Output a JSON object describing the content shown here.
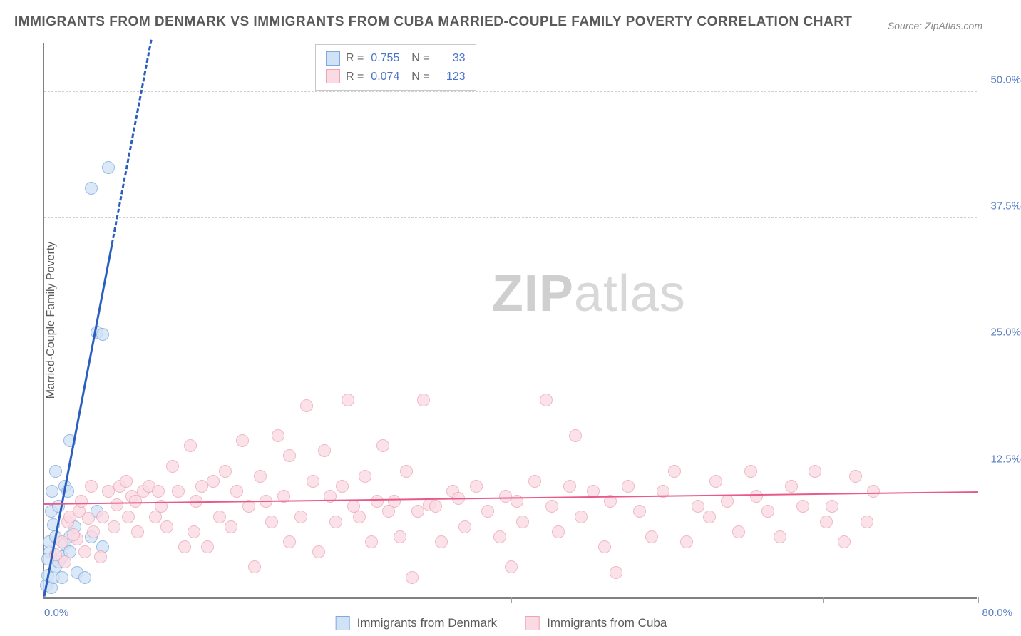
{
  "title": "IMMIGRANTS FROM DENMARK VS IMMIGRANTS FROM CUBA MARRIED-COUPLE FAMILY POVERTY CORRELATION CHART",
  "source": "Source: ZipAtlas.com",
  "y_axis_label": "Married-Couple Family Poverty",
  "watermark_bold": "ZIP",
  "watermark_light": "atlas",
  "chart": {
    "type": "scatter",
    "xlim": [
      0,
      80
    ],
    "ylim": [
      0,
      55
    ],
    "x_min_label": "0.0%",
    "x_max_label": "80.0%",
    "y_ticks": [
      {
        "v": 12.5,
        "label": "12.5%"
      },
      {
        "v": 25.0,
        "label": "25.0%"
      },
      {
        "v": 37.5,
        "label": "37.5%"
      },
      {
        "v": 50.0,
        "label": "50.0%"
      }
    ],
    "x_tick_positions": [
      13.33,
      26.66,
      40,
      53.33,
      66.66,
      80
    ],
    "background_color": "#ffffff",
    "grid_color": "#d0d0d0",
    "marker_radius": 9,
    "series": [
      {
        "name": "Immigrants from Denmark",
        "fill": "#d0e2f6",
        "stroke": "#7ea9df",
        "trend": {
          "color": "#2a5fbf",
          "slope": 6.0,
          "intercept": 0,
          "width": 3,
          "dash_after_x": 5.8
        },
        "R": "0.755",
        "N": "33",
        "points": [
          [
            0.2,
            1.2
          ],
          [
            0.6,
            1.0
          ],
          [
            0.3,
            2.2
          ],
          [
            0.8,
            2.0
          ],
          [
            1.0,
            3.0
          ],
          [
            1.2,
            3.5
          ],
          [
            0.5,
            4.5
          ],
          [
            1.5,
            4.0
          ],
          [
            0.4,
            5.5
          ],
          [
            1.0,
            6.0
          ],
          [
            1.8,
            5.3
          ],
          [
            2.2,
            4.5
          ],
          [
            2.8,
            2.5
          ],
          [
            3.5,
            2.0
          ],
          [
            0.6,
            8.5
          ],
          [
            1.2,
            9.0
          ],
          [
            1.8,
            11.0
          ],
          [
            2.0,
            10.5
          ],
          [
            1.0,
            12.5
          ],
          [
            2.2,
            15.5
          ],
          [
            2.6,
            7.0
          ],
          [
            4.0,
            6.0
          ],
          [
            4.5,
            8.5
          ],
          [
            5.0,
            5.0
          ],
          [
            0.3,
            3.8
          ],
          [
            0.8,
            7.2
          ],
          [
            4.5,
            26.2
          ],
          [
            5.0,
            26.0
          ],
          [
            4.0,
            40.5
          ],
          [
            5.5,
            42.5
          ],
          [
            2.2,
            6.0
          ],
          [
            1.5,
            2.0
          ],
          [
            0.7,
            10.5
          ]
        ]
      },
      {
        "name": "Immigrants from Cuba",
        "fill": "#fadbe3",
        "stroke": "#eda4b7",
        "trend": {
          "color": "#e85a8a",
          "slope": 0.015,
          "intercept": 9.2,
          "width": 2.5,
          "dash_after_x": 999
        },
        "R": "0.074",
        "N": "123",
        "points": [
          [
            1.0,
            4.2
          ],
          [
            1.5,
            5.5
          ],
          [
            2.0,
            7.5
          ],
          [
            2.2,
            8.0
          ],
          [
            2.8,
            5.8
          ],
          [
            3.0,
            8.5
          ],
          [
            3.5,
            4.5
          ],
          [
            3.2,
            9.5
          ],
          [
            4.0,
            11.0
          ],
          [
            4.2,
            6.5
          ],
          [
            5.0,
            8.0
          ],
          [
            5.5,
            10.5
          ],
          [
            6.0,
            7.0
          ],
          [
            6.5,
            11.0
          ],
          [
            7.0,
            11.5
          ],
          [
            7.5,
            10.0
          ],
          [
            7.2,
            8.0
          ],
          [
            7.8,
            9.5
          ],
          [
            8.5,
            10.5
          ],
          [
            9.0,
            11.0
          ],
          [
            9.5,
            8.0
          ],
          [
            10.0,
            9.0
          ],
          [
            10.5,
            7.0
          ],
          [
            11.0,
            13.0
          ],
          [
            11.5,
            10.5
          ],
          [
            12.0,
            5.0
          ],
          [
            12.5,
            15.0
          ],
          [
            13.0,
            9.5
          ],
          [
            13.5,
            11.0
          ],
          [
            14.0,
            5.0
          ],
          [
            14.5,
            11.5
          ],
          [
            15.0,
            8.0
          ],
          [
            15.5,
            12.5
          ],
          [
            16.0,
            7.0
          ],
          [
            17.0,
            15.5
          ],
          [
            17.5,
            9.0
          ],
          [
            18.0,
            3.0
          ],
          [
            18.5,
            12.0
          ],
          [
            19.0,
            9.5
          ],
          [
            20.0,
            16.0
          ],
          [
            20.5,
            10.0
          ],
          [
            21.0,
            5.5
          ],
          [
            21.0,
            14.0
          ],
          [
            22.0,
            8.0
          ],
          [
            22.5,
            19.0
          ],
          [
            23.0,
            11.5
          ],
          [
            23.5,
            4.5
          ],
          [
            24.0,
            14.5
          ],
          [
            25.0,
            7.5
          ],
          [
            25.5,
            11.0
          ],
          [
            26.0,
            19.5
          ],
          [
            26.5,
            9.0
          ],
          [
            27.0,
            8.0
          ],
          [
            27.5,
            12.0
          ],
          [
            28.0,
            5.5
          ],
          [
            28.5,
            9.5
          ],
          [
            29.0,
            15.0
          ],
          [
            30.0,
            9.5
          ],
          [
            30.5,
            6.0
          ],
          [
            31.0,
            12.5
          ],
          [
            31.5,
            2.0
          ],
          [
            32.0,
            8.5
          ],
          [
            32.5,
            19.5
          ],
          [
            33.0,
            9.2
          ],
          [
            33.5,
            9.0
          ],
          [
            34.0,
            5.5
          ],
          [
            35.0,
            10.5
          ],
          [
            35.5,
            9.8
          ],
          [
            36.0,
            7.0
          ],
          [
            37.0,
            11.0
          ],
          [
            38.0,
            8.5
          ],
          [
            39.0,
            6.0
          ],
          [
            39.5,
            10.0
          ],
          [
            40.0,
            3.0
          ],
          [
            40.5,
            9.5
          ],
          [
            41.0,
            7.5
          ],
          [
            42.0,
            11.5
          ],
          [
            43.0,
            19.5
          ],
          [
            43.5,
            9.0
          ],
          [
            44.0,
            6.5
          ],
          [
            45.0,
            11.0
          ],
          [
            45.5,
            16.0
          ],
          [
            46.0,
            8.0
          ],
          [
            47.0,
            10.5
          ],
          [
            48.0,
            5.0
          ],
          [
            48.5,
            9.5
          ],
          [
            49.0,
            2.5
          ],
          [
            50.0,
            11.0
          ],
          [
            51.0,
            8.5
          ],
          [
            52.0,
            6.0
          ],
          [
            53.0,
            10.5
          ],
          [
            54.0,
            12.5
          ],
          [
            55.0,
            5.5
          ],
          [
            56.0,
            9.0
          ],
          [
            57.0,
            8.0
          ],
          [
            57.5,
            11.5
          ],
          [
            58.5,
            9.5
          ],
          [
            59.5,
            6.5
          ],
          [
            60.5,
            12.5
          ],
          [
            61.0,
            10.0
          ],
          [
            62.0,
            8.5
          ],
          [
            63.0,
            6.0
          ],
          [
            64.0,
            11.0
          ],
          [
            65.0,
            9.0
          ],
          [
            66.0,
            12.5
          ],
          [
            67.0,
            7.5
          ],
          [
            67.5,
            9.0
          ],
          [
            68.5,
            5.5
          ],
          [
            69.5,
            12.0
          ],
          [
            70.5,
            7.5
          ],
          [
            71.0,
            10.5
          ],
          [
            1.8,
            3.5
          ],
          [
            2.5,
            6.2
          ],
          [
            3.8,
            7.8
          ],
          [
            4.8,
            4.0
          ],
          [
            6.2,
            9.2
          ],
          [
            8.0,
            6.5
          ],
          [
            9.8,
            10.5
          ],
          [
            12.8,
            6.5
          ],
          [
            16.5,
            10.5
          ],
          [
            19.5,
            7.5
          ],
          [
            24.5,
            10.0
          ],
          [
            29.5,
            8.5
          ]
        ]
      }
    ]
  },
  "legend_bottom": [
    {
      "label": "Immigrants from Denmark",
      "fill": "#d0e2f6",
      "stroke": "#7ea9df"
    },
    {
      "label": "Immigrants from Cuba",
      "fill": "#fadbe3",
      "stroke": "#eda4b7"
    }
  ]
}
